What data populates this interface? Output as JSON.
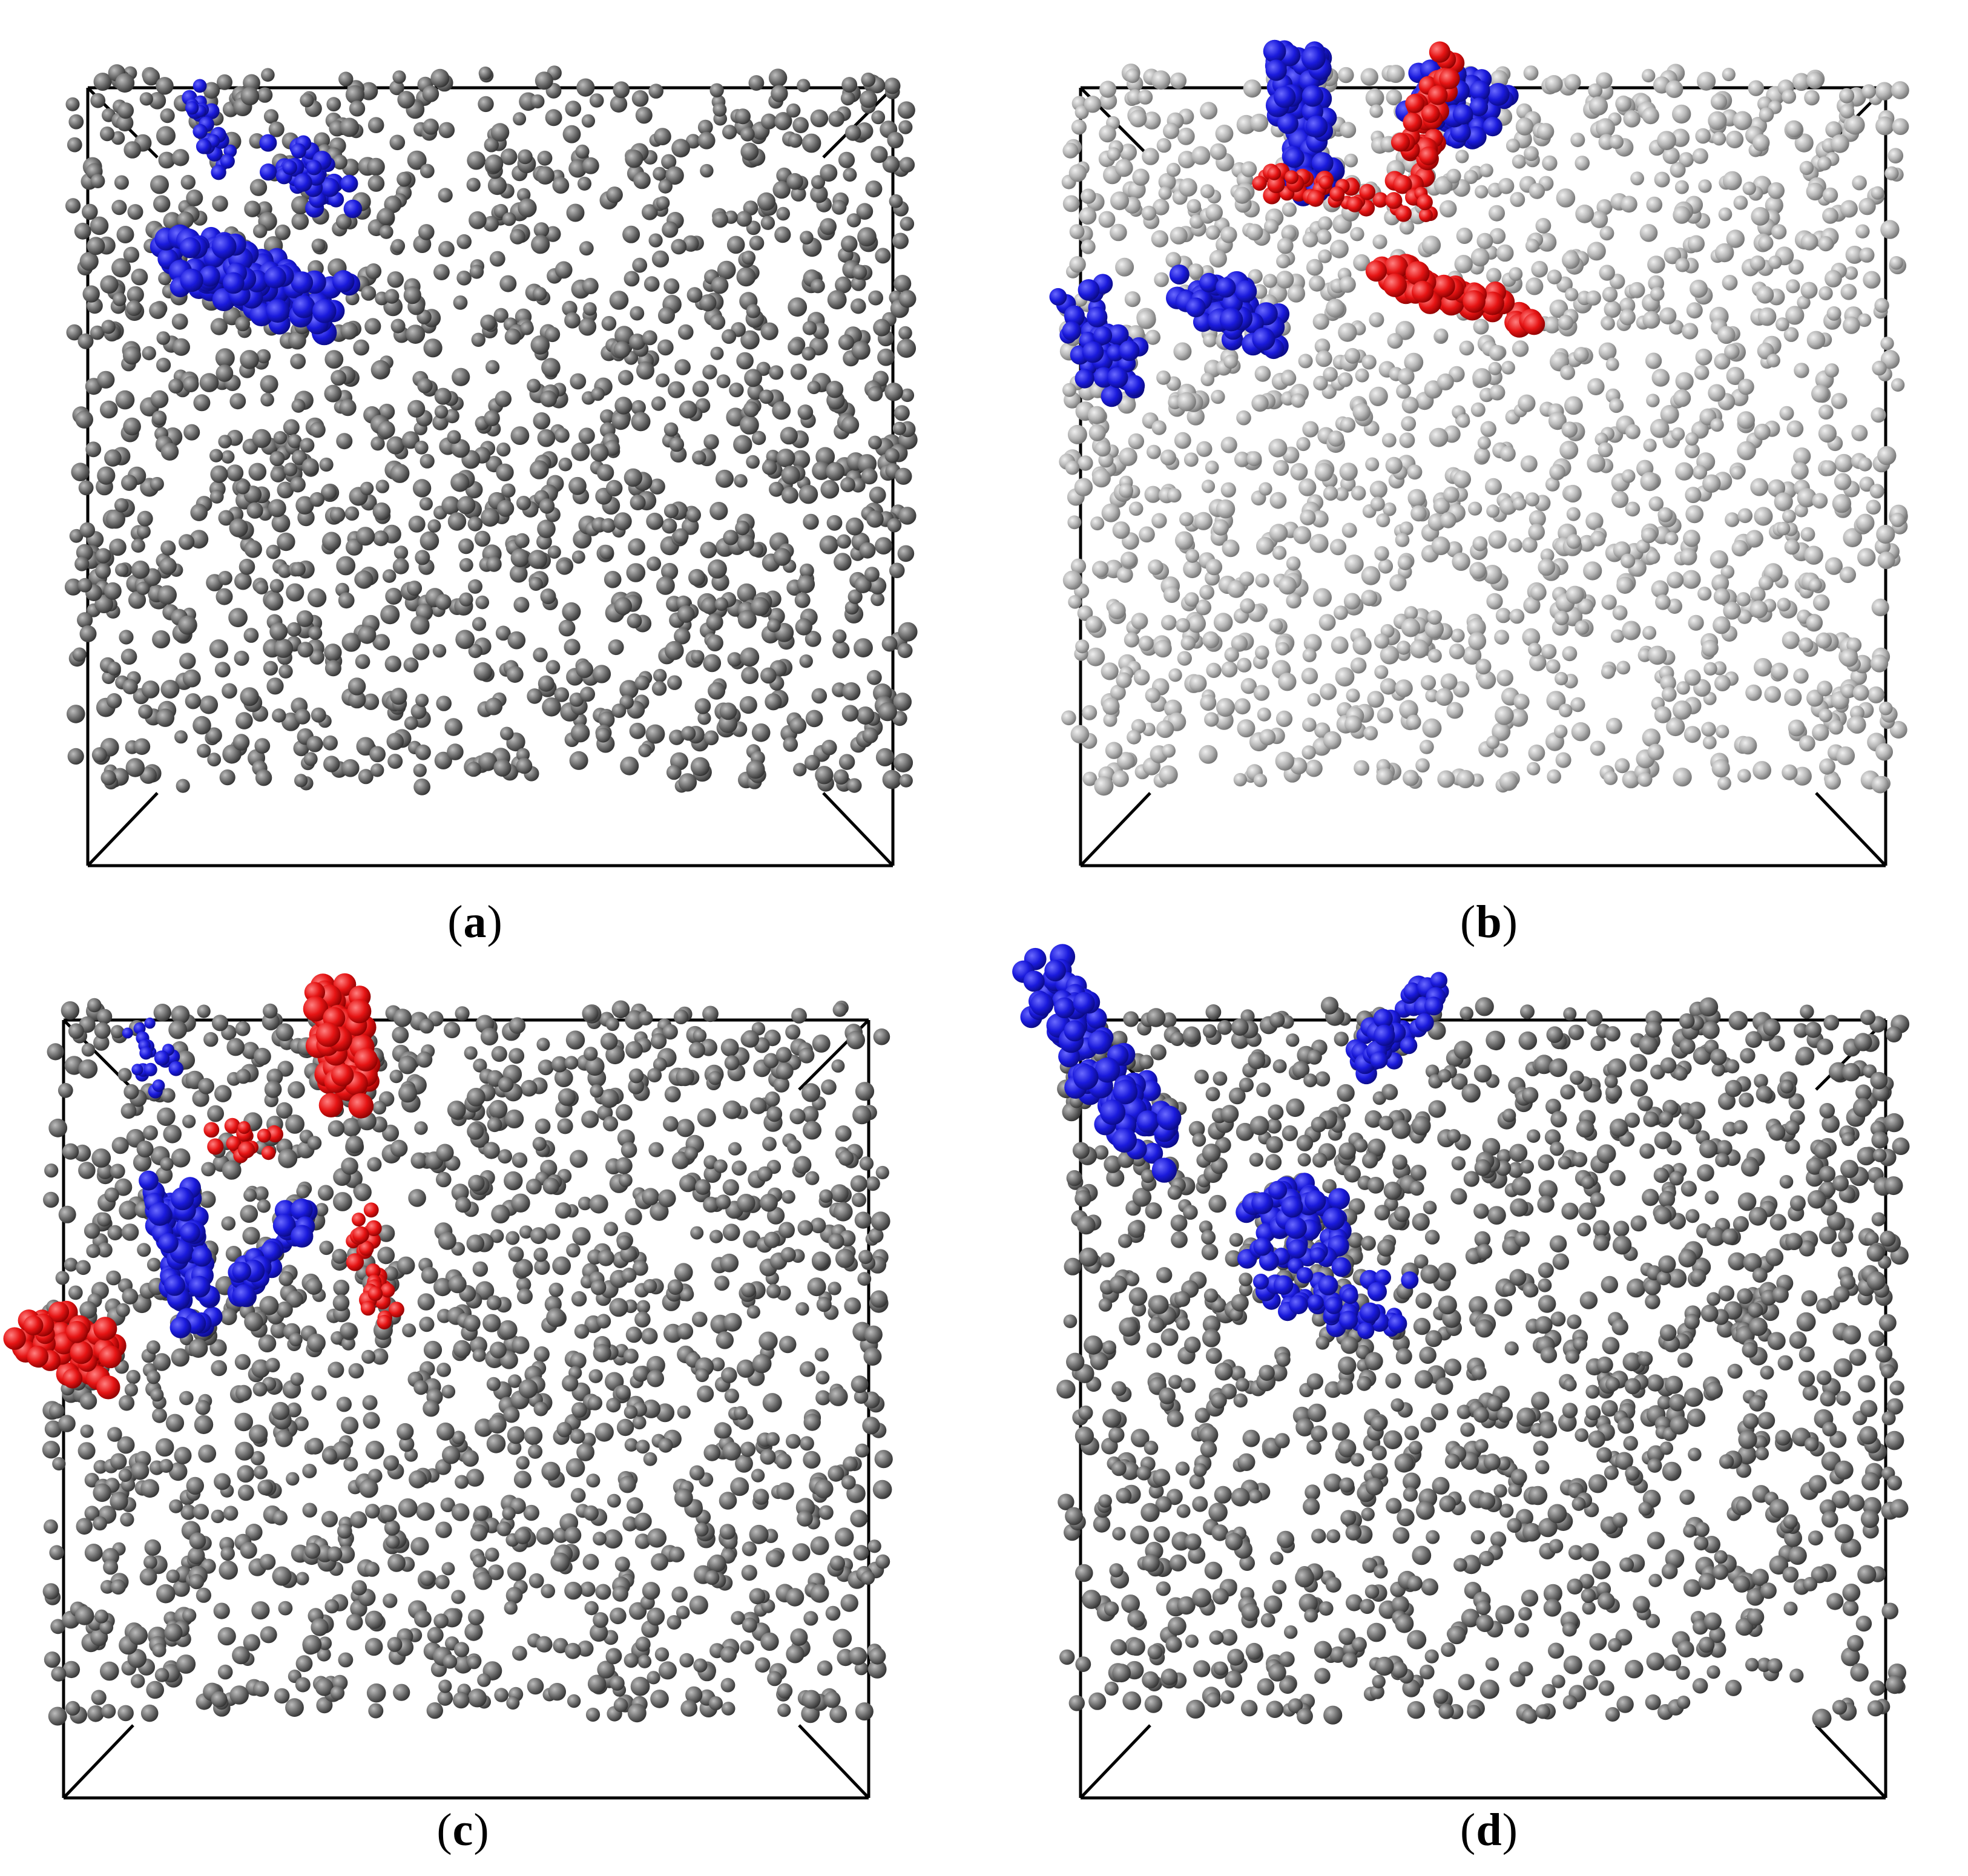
{
  "panels": [
    {
      "label": "a",
      "colors": [
        "gray",
        "blue"
      ]
    },
    {
      "label": "b",
      "colors": [
        "light-gray",
        "blue",
        "red"
      ]
    },
    {
      "label": "c",
      "colors": [
        "gray",
        "blue",
        "red"
      ]
    },
    {
      "label": "d",
      "colors": [
        "gray",
        "blue"
      ]
    }
  ],
  "colors": {
    "carbon": "#6e6e6e",
    "carbon_light": "#b4b4b4",
    "blue": "#1a1adc",
    "red": "#e61414",
    "box": "#000000"
  }
}
